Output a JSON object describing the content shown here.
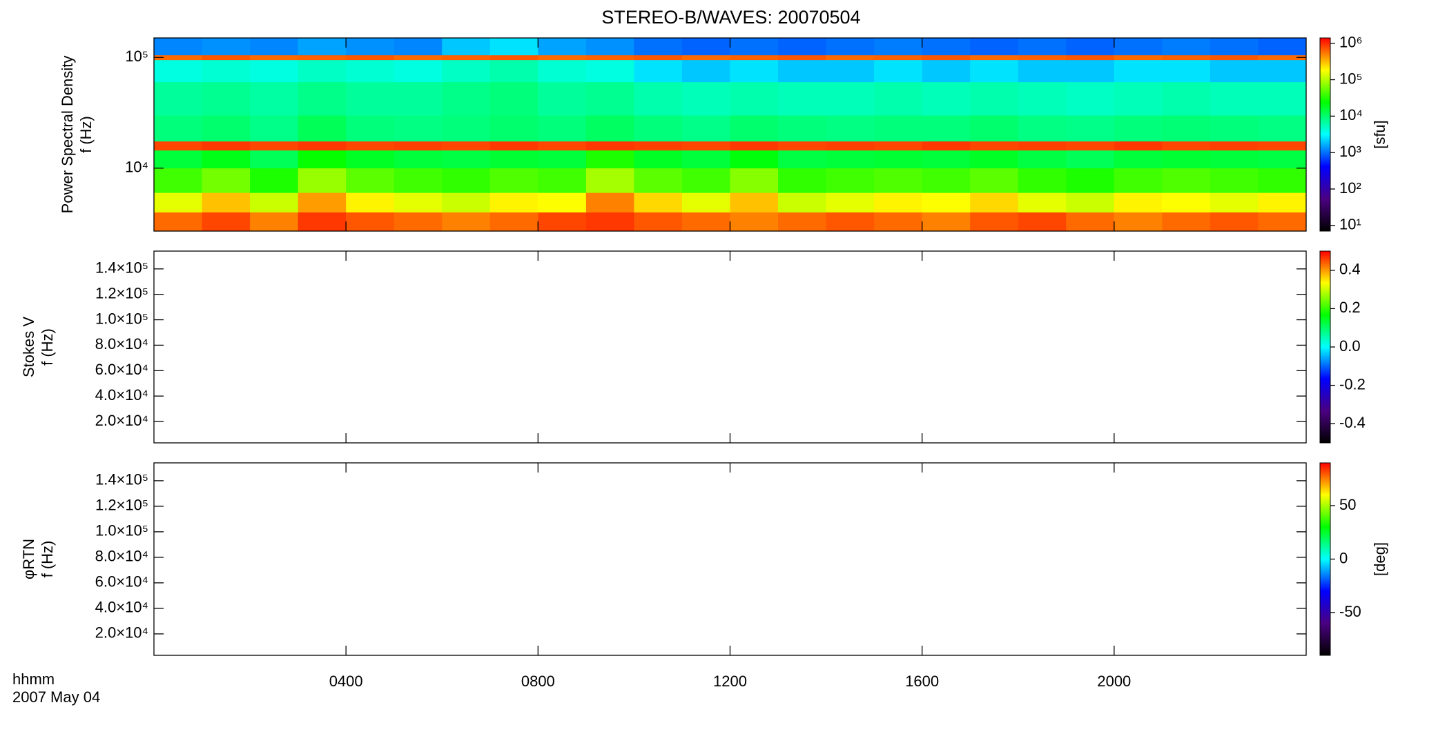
{
  "figure": {
    "title": "STEREO-B/WAVES: 20070504",
    "xlim": [
      0,
      24
    ],
    "xticks": [
      {
        "value": 4,
        "label": "0400"
      },
      {
        "value": 8,
        "label": "0800"
      },
      {
        "value": 12,
        "label": "1200"
      },
      {
        "value": 16,
        "label": "1600"
      },
      {
        "value": 20,
        "label": "2000"
      }
    ],
    "xlabel": [
      "hhmm",
      "2007 May 04"
    ],
    "colorscale": [
      "#000000",
      "#4b0082",
      "#0000ff",
      "#00ffff",
      "#00ff00",
      "#ffff00",
      "#ff0000"
    ]
  },
  "chart_data": [
    {
      "type": "heatmap",
      "ylabel": [
        "Power Spectral Density",
        "f (Hz)"
      ],
      "ylog": true,
      "ylim": [
        2700,
        150000
      ],
      "yticks": [
        {
          "value": 10000,
          "label": "10⁴"
        },
        {
          "value": 100000,
          "label": "10⁵"
        }
      ],
      "zlog": true,
      "zlim": [
        7,
        1400000
      ],
      "zlabel": "[sfu]",
      "zticks": [
        {
          "value": 10,
          "label": "10¹"
        },
        {
          "value": 100,
          "label": "10²"
        },
        {
          "value": 1000,
          "label": "10³"
        },
        {
          "value": 10000,
          "label": "10⁴"
        },
        {
          "value": 100000,
          "label": "10⁵"
        },
        {
          "value": 1000000,
          "label": "10⁶"
        }
      ],
      "xbins": [
        0,
        1,
        2,
        3,
        4,
        5,
        6,
        7,
        8,
        9,
        10,
        11,
        12,
        13,
        14,
        15,
        16,
        17,
        18,
        19,
        20,
        21,
        22,
        23,
        24
      ],
      "ybins": [
        2700,
        4000,
        6000,
        10000,
        14500,
        17500,
        30000,
        60000,
        95000,
        105000,
        150000
      ],
      "values": [
        [
          600000,
          800000,
          500000,
          900000,
          700000,
          600000,
          500000,
          600000,
          800000,
          900000,
          700000,
          600000,
          500000,
          600000,
          700000,
          600000,
          500000,
          700000,
          800000,
          600000,
          500000,
          600000,
          700000,
          600000
        ],
        [
          150000,
          300000,
          120000,
          400000,
          200000,
          150000,
          120000,
          200000,
          180000,
          500000,
          250000,
          150000,
          300000,
          120000,
          150000,
          200000,
          180000,
          250000,
          150000,
          120000,
          200000,
          180000,
          150000,
          200000
        ],
        [
          40000,
          60000,
          30000,
          80000,
          50000,
          40000,
          35000,
          45000,
          40000,
          90000,
          50000,
          40000,
          70000,
          35000,
          40000,
          45000,
          40000,
          50000,
          35000,
          30000,
          40000,
          45000,
          40000,
          35000
        ],
        [
          15000,
          20000,
          12000,
          25000,
          18000,
          15000,
          14000,
          16000,
          15000,
          30000,
          18000,
          15000,
          22000,
          14000,
          15000,
          16000,
          15000,
          18000,
          14000,
          12000,
          15000,
          16000,
          15000,
          14000
        ],
        [
          800000,
          900000,
          800000,
          900000,
          800000,
          850000,
          800000,
          900000,
          800000,
          900000,
          850000,
          800000,
          900000,
          800000,
          850000,
          800000,
          900000,
          800000,
          850000,
          800000,
          900000,
          800000,
          850000,
          800000
        ],
        [
          9000,
          10000,
          8000,
          12000,
          9000,
          8500,
          9000,
          10000,
          9000,
          11000,
          9000,
          8000,
          10000,
          9000,
          8500,
          9000,
          9000,
          10000,
          8500,
          8000,
          9000,
          9500,
          9000,
          8500
        ],
        [
          7000,
          7500,
          6500,
          8000,
          7000,
          7000,
          8000,
          9000,
          7000,
          7500,
          6000,
          5500,
          6000,
          5500,
          5500,
          6000,
          5500,
          6000,
          5500,
          5000,
          5500,
          6000,
          5500,
          5500
        ],
        [
          4000,
          4500,
          4000,
          5000,
          4500,
          4000,
          5000,
          6000,
          4500,
          4000,
          2500,
          2000,
          2500,
          2000,
          2000,
          2500,
          2000,
          2500,
          2000,
          2000,
          2500,
          2500,
          2000,
          2000
        ],
        [
          600000,
          700000,
          600000,
          650000,
          700000,
          600000,
          650000,
          700000,
          600000,
          650000,
          700000,
          600000,
          650000,
          700000,
          600000,
          650000,
          700000,
          600000,
          650000,
          700000,
          600000,
          650000,
          700000,
          600000
        ],
        [
          1200,
          1300,
          1200,
          1500,
          1300,
          1200,
          2000,
          2500,
          1500,
          1300,
          1000,
          900,
          1000,
          900,
          1000,
          1100,
          1000,
          900,
          1000,
          900,
          1000,
          1100,
          1000,
          900
        ]
      ]
    },
    {
      "type": "heatmap",
      "ylabel": [
        "Stokes V",
        "f (Hz)"
      ],
      "ylog": false,
      "ylim": [
        3200,
        154000
      ],
      "yticks": [
        {
          "value": 20000,
          "label": "2.0×10⁴"
        },
        {
          "value": 40000,
          "label": "4.0×10⁴"
        },
        {
          "value": 60000,
          "label": "6.0×10⁴"
        },
        {
          "value": 80000,
          "label": "8.0×10⁴"
        },
        {
          "value": 100000,
          "label": "1.0×10⁵"
        },
        {
          "value": 120000,
          "label": "1.2×10⁵"
        },
        {
          "value": 140000,
          "label": "1.4×10⁵"
        }
      ],
      "zlog": false,
      "zlim": [
        -0.5,
        0.5
      ],
      "zticks": [
        -0.4,
        -0.2,
        {
          "value": 0,
          "label": "0.0"
        },
        0.2,
        0.4
      ]
    },
    {
      "type": "heatmap",
      "ylabel": [
        "φRTN",
        "f (Hz)"
      ],
      "ylog": false,
      "ylim": [
        3200,
        154000
      ],
      "yticks": [
        {
          "value": 20000,
          "label": "2.0×10⁴"
        },
        {
          "value": 40000,
          "label": "4.0×10⁴"
        },
        {
          "value": 60000,
          "label": "6.0×10⁴"
        },
        {
          "value": 80000,
          "label": "8.0×10⁴"
        },
        {
          "value": 100000,
          "label": "1.0×10⁵"
        },
        {
          "value": 120000,
          "label": "1.2×10⁵"
        },
        {
          "value": 140000,
          "label": "1.4×10⁵"
        }
      ],
      "zlog": false,
      "zlim": [
        -90,
        90
      ],
      "zlabel": "[deg]",
      "zticks": [
        -50,
        0,
        50
      ]
    }
  ]
}
